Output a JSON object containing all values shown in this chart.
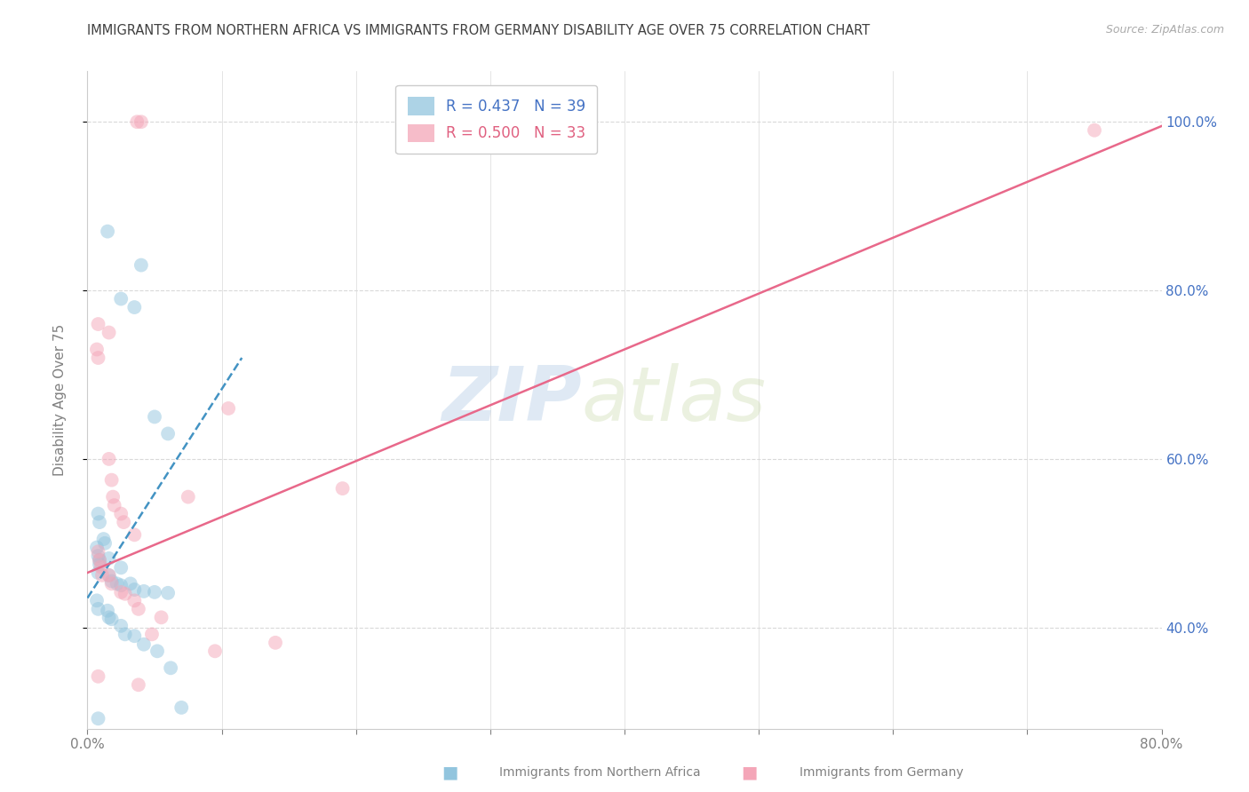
{
  "title": "IMMIGRANTS FROM NORTHERN AFRICA VS IMMIGRANTS FROM GERMANY DISABILITY AGE OVER 75 CORRELATION CHART",
  "source": "Source: ZipAtlas.com",
  "ylabel": "Disability Age Over 75",
  "legend_blue_label": "Immigrants from Northern Africa",
  "legend_pink_label": "Immigrants from Germany",
  "legend_blue_r": "R = 0.437",
  "legend_blue_n": "N = 39",
  "legend_pink_r": "R = 0.500",
  "legend_pink_n": "N = 33",
  "watermark_zip": "ZIP",
  "watermark_atlas": "atlas",
  "xlim": [
    0.0,
    0.8
  ],
  "ylim": [
    0.28,
    1.06
  ],
  "xticks": [
    0.0,
    0.1,
    0.2,
    0.3,
    0.4,
    0.5,
    0.6,
    0.7,
    0.8
  ],
  "yticks": [
    0.4,
    0.6,
    0.8,
    1.0
  ],
  "ytick_labels_right": [
    "40.0%",
    "60.0%",
    "80.0%",
    "100.0%"
  ],
  "xtick_labels": [
    "0.0%",
    "",
    "",
    "",
    "",
    "",
    "",
    "",
    "80.0%"
  ],
  "blue_color": "#92c5de",
  "pink_color": "#f4a6b8",
  "blue_line_color": "#4393c3",
  "pink_line_color": "#e8688a",
  "blue_scatter_x": [
    0.015,
    0.04,
    0.025,
    0.035,
    0.05,
    0.06,
    0.008,
    0.009,
    0.012,
    0.013,
    0.007,
    0.008,
    0.009,
    0.009,
    0.008,
    0.016,
    0.018,
    0.022,
    0.025,
    0.032,
    0.035,
    0.042,
    0.05,
    0.06,
    0.007,
    0.008,
    0.015,
    0.016,
    0.018,
    0.025,
    0.028,
    0.035,
    0.042,
    0.052,
    0.062,
    0.07,
    0.008,
    0.016,
    0.025
  ],
  "blue_scatter_y": [
    0.87,
    0.83,
    0.79,
    0.78,
    0.65,
    0.63,
    0.535,
    0.525,
    0.505,
    0.5,
    0.495,
    0.485,
    0.48,
    0.475,
    0.465,
    0.462,
    0.455,
    0.452,
    0.45,
    0.452,
    0.445,
    0.443,
    0.442,
    0.441,
    0.432,
    0.422,
    0.42,
    0.412,
    0.41,
    0.402,
    0.392,
    0.39,
    0.38,
    0.372,
    0.352,
    0.305,
    0.292,
    0.482,
    0.471
  ],
  "pink_scatter_x": [
    0.037,
    0.04,
    0.008,
    0.016,
    0.007,
    0.008,
    0.016,
    0.018,
    0.019,
    0.02,
    0.025,
    0.027,
    0.035,
    0.075,
    0.105,
    0.75,
    0.008,
    0.009,
    0.01,
    0.011,
    0.016,
    0.018,
    0.025,
    0.028,
    0.035,
    0.038,
    0.048,
    0.095,
    0.14,
    0.19,
    0.008,
    0.055,
    0.038
  ],
  "pink_scatter_y": [
    1.0,
    1.0,
    0.76,
    0.75,
    0.73,
    0.72,
    0.6,
    0.575,
    0.555,
    0.545,
    0.535,
    0.525,
    0.51,
    0.555,
    0.66,
    0.99,
    0.49,
    0.48,
    0.472,
    0.462,
    0.462,
    0.452,
    0.442,
    0.44,
    0.432,
    0.422,
    0.392,
    0.372,
    0.382,
    0.565,
    0.342,
    0.412,
    0.332
  ],
  "blue_line_x": [
    0.0,
    0.115
  ],
  "blue_line_y": [
    0.435,
    0.72
  ],
  "pink_line_x": [
    0.0,
    0.8
  ],
  "pink_line_y": [
    0.465,
    0.995
  ],
  "background_color": "#ffffff",
  "grid_color": "#d9d9d9",
  "title_color": "#404040",
  "axis_label_color": "#808080",
  "right_tick_color": "#4472c4",
  "marker_size": 130,
  "marker_alpha": 0.5
}
